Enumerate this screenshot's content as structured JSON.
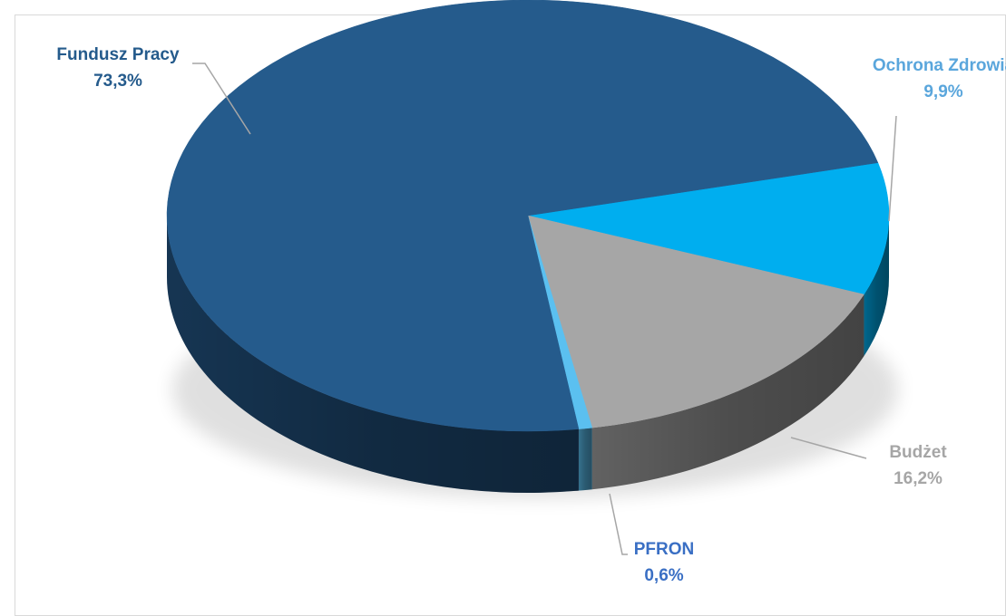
{
  "chart_data": {
    "type": "pie",
    "title": "",
    "slices": [
      {
        "name": "Ochrona Zdrowia",
        "value": 9.9,
        "label": "9,9%",
        "color": "#00aeef",
        "label_color": "#5aa6dc"
      },
      {
        "name": "Budżet",
        "value": 16.2,
        "label": "16,2%",
        "color": "#a6a6a6",
        "label_color": "#a6a6a6"
      },
      {
        "name": "PFRON",
        "value": 0.6,
        "label": "0,6%",
        "color": "#5bc0f0",
        "label_color": "#3a6fc4"
      },
      {
        "name": "Fundusz Pracy",
        "value": 73.3,
        "label": "73,3%",
        "color": "#255b8c",
        "label_color": "#255b8c"
      }
    ],
    "legend": "none",
    "style": "3d"
  }
}
